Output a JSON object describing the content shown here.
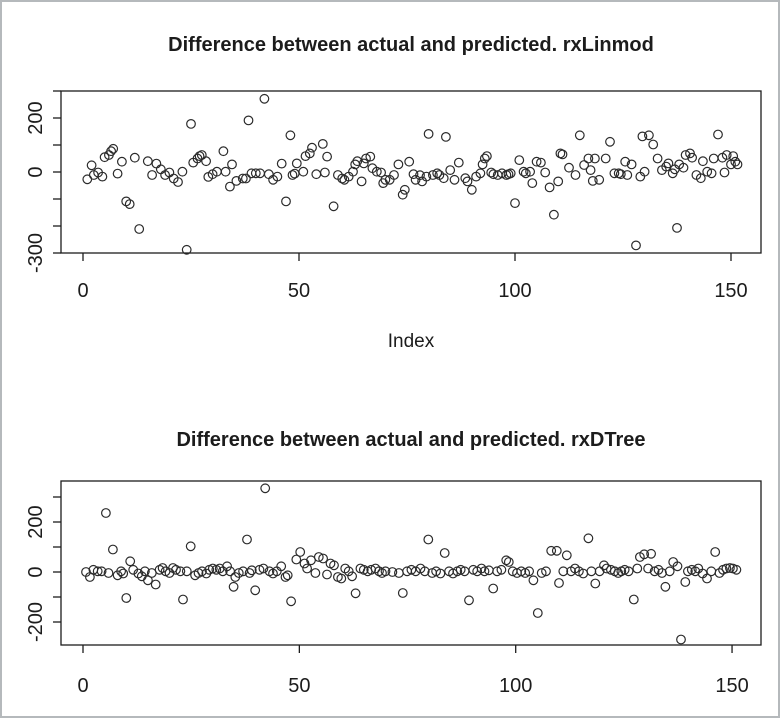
{
  "window": {
    "background": "#ffffff",
    "border_color": "#b5b9bc",
    "foreground": "#1c1c1c"
  },
  "chart_data": [
    {
      "type": "scatter",
      "title": "Difference between actual and predicted. rxLinmod",
      "xlabel": "Index",
      "ylabel": "",
      "marker": "open-circle",
      "grid": false,
      "legend": "none",
      "xlim": [
        -5,
        157
      ],
      "ylim": [
        -300,
        300
      ],
      "x_ticks": [
        0,
        50,
        100,
        150
      ],
      "x_tick_labels": [
        "0",
        "50",
        "100",
        "150"
      ],
      "y_ticks": [
        300,
        200,
        100,
        0,
        -100,
        -200,
        -300
      ],
      "y_tick_labels_shown": {
        "200": "200",
        "0": "0",
        "-300": "-300"
      },
      "x": [
        1,
        2,
        2.5,
        3.5,
        4.5,
        5,
        6,
        6.5,
        7,
        8,
        9,
        10,
        10.8,
        12,
        13,
        15,
        16,
        17,
        18,
        19,
        20,
        21,
        22,
        23,
        24,
        25,
        25.5,
        26.5,
        27,
        27.5,
        28.5,
        29,
        30,
        31,
        32.5,
        33,
        34,
        34.5,
        35.5,
        37,
        37.7,
        38.3,
        39,
        40,
        41,
        42,
        43,
        44,
        45,
        46,
        47,
        48,
        48.5,
        49,
        49.5,
        51,
        51.5,
        52.5,
        53,
        54,
        55.5,
        56,
        56.5,
        58,
        59,
        60,
        60.5,
        61.5,
        62.5,
        63,
        63.5,
        64.5,
        65,
        65.5,
        66.5,
        67,
        68,
        69,
        69.5,
        70,
        71,
        72,
        73,
        74,
        74.5,
        75.5,
        76.5,
        77,
        78,
        78.5,
        79.5,
        80,
        81,
        82,
        82.5,
        83.5,
        84,
        85,
        86,
        87,
        88.5,
        89,
        90,
        91,
        92,
        92.5,
        93,
        93.5,
        94.5,
        95,
        96,
        97,
        98,
        98.5,
        99,
        100,
        101,
        102,
        102.5,
        103.5,
        104,
        105,
        106,
        107,
        108,
        109,
        110,
        110.5,
        111,
        112.5,
        114,
        115,
        116,
        117,
        117.5,
        118,
        118.5,
        119.5,
        121,
        122,
        123,
        124,
        124.5,
        125.5,
        126,
        127,
        128,
        129,
        129.5,
        130,
        131,
        132,
        133,
        134,
        135,
        135.5,
        136.5,
        137,
        137.5,
        138,
        139,
        139.5,
        140.5,
        141,
        142,
        143,
        143.5,
        144.5,
        145.5,
        146,
        147,
        148,
        148.5,
        149,
        150,
        150.5,
        151,
        151.5
      ],
      "y": [
        -27,
        25,
        -11,
        -2,
        -17,
        55,
        63,
        77,
        86,
        -6,
        38,
        -109,
        -119,
        53,
        -211,
        40,
        -11,
        31,
        10,
        -11,
        -2,
        -24,
        -37,
        1,
        -288,
        178,
        35,
        50,
        59,
        63,
        40,
        -18,
        -8,
        1,
        77,
        1,
        -54,
        28,
        -33,
        -24,
        -24,
        191,
        -5,
        -5,
        -5,
        271,
        -8,
        -29,
        -17,
        31,
        -109,
        136,
        -11,
        -6,
        32,
        1,
        59,
        69,
        90,
        -8,
        104,
        -2,
        57,
        -127,
        -11,
        -24,
        -29,
        -17,
        1,
        28,
        40,
        -35,
        32,
        50,
        57,
        14,
        1,
        -2,
        -41,
        -29,
        -29,
        -11,
        28,
        -84,
        -66,
        38,
        -8,
        -29,
        -12,
        -35,
        -17,
        141,
        -11,
        -5,
        -11,
        -23,
        130,
        7,
        -29,
        35,
        -23,
        -35,
        -66,
        -17,
        -5,
        28,
        50,
        59,
        -2,
        -8,
        -11,
        -5,
        -11,
        -8,
        -5,
        -115,
        44,
        1,
        -5,
        1,
        -41,
        38,
        35,
        -2,
        -57,
        -158,
        -35,
        69,
        65,
        16,
        -11,
        136,
        26,
        50,
        7,
        -33,
        50,
        -29,
        50,
        112,
        -5,
        -5,
        -8,
        38,
        -11,
        28,
        -272,
        -17,
        132,
        1,
        136,
        102,
        50,
        7,
        20,
        32,
        -5,
        10,
        -207,
        28,
        16,
        63,
        69,
        53,
        -11,
        -23,
        40,
        1,
        -5,
        50,
        139,
        53,
        -2,
        63,
        28,
        59,
        38,
        28
      ]
    },
    {
      "type": "scatter",
      "title": "Difference between actual and predicted. rxDTree",
      "xlabel": "",
      "ylabel": "",
      "marker": "open-circle",
      "grid": false,
      "legend": "none",
      "xlim": [
        -5,
        157
      ],
      "ylim": [
        -293,
        364
      ],
      "x_ticks": [
        0,
        50,
        100,
        150
      ],
      "x_tick_labels": [
        "0",
        "50",
        "100",
        "150"
      ],
      "y_ticks": [
        300,
        200,
        100,
        0,
        -100,
        -200
      ],
      "y_tick_labels_shown": {
        "200": "200",
        "0": "0",
        "-200": "-200"
      },
      "x": [
        0.7,
        1.6,
        2.4,
        3.4,
        4.3,
        5.3,
        5.9,
        6.9,
        8,
        8.8,
        9.3,
        10,
        10.9,
        11.6,
        12.8,
        13.6,
        14.3,
        15,
        15.9,
        16.8,
        17.7,
        18.4,
        19.1,
        20,
        20.8,
        21.5,
        22.5,
        23.1,
        24,
        24.9,
        25.9,
        26.7,
        27.5,
        28.5,
        29.2,
        30,
        30.8,
        31.6,
        32.3,
        33.3,
        34,
        34.8,
        35.2,
        36,
        37,
        37.9,
        38.5,
        39,
        39.8,
        40.8,
        41.7,
        42.1,
        43.1,
        43.9,
        44.8,
        45.8,
        46.8,
        47.3,
        48.1,
        49.3,
        50.2,
        51.2,
        51.8,
        52.7,
        53.7,
        54.5,
        55.5,
        56.4,
        57.2,
        58,
        58.9,
        59.7,
        60.6,
        61.4,
        62.2,
        63,
        64.1,
        64.9,
        65.8,
        66.6,
        67.6,
        68.4,
        69.1,
        69.9,
        71.5,
        73,
        73.9,
        74.9,
        75.9,
        76.9,
        78,
        79,
        79.8,
        80.7,
        81.6,
        82.6,
        83.6,
        84.6,
        85.5,
        86.5,
        87.3,
        88.2,
        89.2,
        90.2,
        91.1,
        92.1,
        92.8,
        93.8,
        94.8,
        95.7,
        96.7,
        97.8,
        98.4,
        99.3,
        100.3,
        101.3,
        102.2,
        103.1,
        104.1,
        105.1,
        106,
        107,
        108.2,
        109.5,
        110,
        111,
        111.8,
        112.8,
        113.7,
        114.6,
        115.6,
        116.8,
        117.5,
        118.4,
        119.4,
        120.4,
        121,
        122,
        122.9,
        123.7,
        124.4,
        125.2,
        126.1,
        127.3,
        128.1,
        128.7,
        129.7,
        130.6,
        131.3,
        132.1,
        133,
        133.8,
        134.6,
        135.6,
        136.4,
        137.4,
        138.2,
        139.2,
        139.8,
        140.7,
        141.5,
        142.2,
        143.2,
        144.2,
        145.2,
        146.1,
        147.1,
        147.9,
        148.7,
        149.5,
        150.2,
        151
      ],
      "y": [
        0,
        -20,
        9,
        3,
        3,
        236,
        -4,
        90,
        -13,
        3,
        -6,
        -104,
        43,
        9,
        -6,
        -17,
        3,
        -33,
        -4,
        -50,
        9,
        16,
        3,
        -4,
        16,
        9,
        3,
        -110,
        3,
        103,
        -13,
        -4,
        3,
        -6,
        9,
        14,
        9,
        14,
        3,
        23,
        3,
        -59,
        -20,
        -4,
        3,
        130,
        -4,
        7,
        -73,
        9,
        14,
        335,
        3,
        -6,
        3,
        23,
        -20,
        -13,
        -117,
        50,
        80,
        34,
        14,
        47,
        -4,
        60,
        54,
        -10,
        34,
        27,
        -20,
        -26,
        14,
        3,
        -17,
        -85,
        14,
        9,
        3,
        9,
        14,
        3,
        -4,
        3,
        0,
        -4,
        -84,
        3,
        9,
        3,
        14,
        3,
        130,
        -4,
        3,
        -6,
        76,
        3,
        -6,
        3,
        9,
        3,
        -113,
        9,
        3,
        14,
        3,
        7,
        -66,
        3,
        9,
        47,
        40,
        3,
        -4,
        3,
        -4,
        3,
        -33,
        -164,
        -4,
        3,
        85,
        85,
        -44,
        3,
        67,
        3,
        14,
        3,
        -6,
        135,
        3,
        -46,
        3,
        27,
        14,
        9,
        3,
        -4,
        3,
        9,
        3,
        -110,
        14,
        60,
        71,
        14,
        73,
        3,
        9,
        -4,
        -59,
        3,
        40,
        23,
        -270,
        -40,
        3,
        9,
        3,
        14,
        -6,
        -26,
        3,
        80,
        -4,
        9,
        14,
        16,
        14,
        9
      ]
    }
  ]
}
